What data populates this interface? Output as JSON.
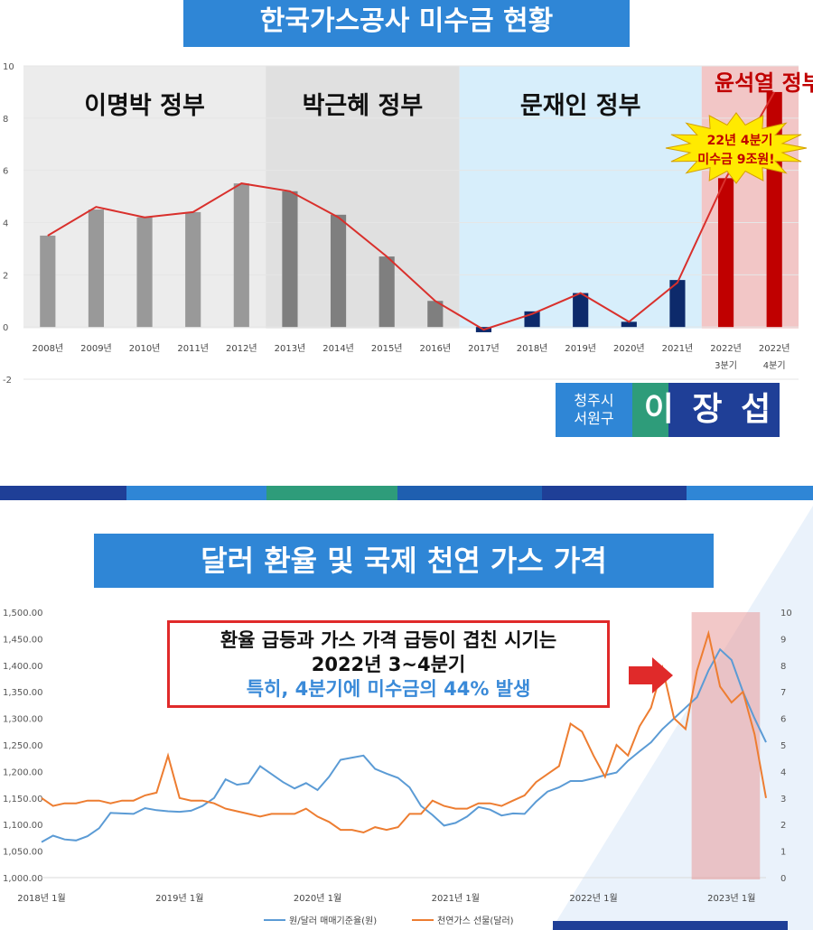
{
  "chart_data": [
    {
      "type": "bar",
      "title": "한국가스공사 미수금 현황",
      "categories": [
        {
          "l1": "2008년",
          "l2": ""
        },
        {
          "l1": "2009년",
          "l2": ""
        },
        {
          "l1": "2010년",
          "l2": ""
        },
        {
          "l1": "2011년",
          "l2": ""
        },
        {
          "l1": "2012년",
          "l2": ""
        },
        {
          "l1": "2013년",
          "l2": ""
        },
        {
          "l1": "2014년",
          "l2": ""
        },
        {
          "l1": "2015년",
          "l2": ""
        },
        {
          "l1": "2016년",
          "l2": ""
        },
        {
          "l1": "2017년",
          "l2": ""
        },
        {
          "l1": "2018년",
          "l2": ""
        },
        {
          "l1": "2019년",
          "l2": ""
        },
        {
          "l1": "2020년",
          "l2": ""
        },
        {
          "l1": "2021년",
          "l2": ""
        },
        {
          "l1": "2022년",
          "l2": "3분기"
        },
        {
          "l1": "2022년",
          "l2": "4분기"
        }
      ],
      "values": [
        3.5,
        4.5,
        4.2,
        4.4,
        5.5,
        5.2,
        4.3,
        2.7,
        1.0,
        -0.2,
        0.6,
        1.3,
        0.2,
        1.8,
        5.7,
        9.0
      ],
      "line_values": [
        3.5,
        4.6,
        4.2,
        4.4,
        5.5,
        5.2,
        4.2,
        2.7,
        1.0,
        -0.1,
        0.5,
        1.3,
        0.2,
        1.7,
        5.7,
        9.0
      ],
      "ylim": [
        -2,
        10
      ],
      "yticks": [
        "-2",
        "0",
        "2",
        "4",
        "6",
        "8",
        "10"
      ],
      "eras": [
        {
          "label": "이명박 정부",
          "from": 0,
          "to": 5,
          "color": "#ececec"
        },
        {
          "label": "박근혜 정부",
          "from": 5,
          "to": 9,
          "color": "#e0e0e0"
        },
        {
          "label": "문재인 정부",
          "from": 9,
          "to": 14,
          "color": "#d7eefb"
        },
        {
          "label": "윤석열 정부",
          "from": 14,
          "to": 16,
          "color": "#f2c6c6"
        }
      ],
      "bar_colors": {
        "lee": "#999999",
        "park": "#7f7f7f",
        "moon": "#0d2a6b",
        "yoon": "#c00000",
        "line": "#d9302c"
      },
      "callout": [
        "22년 4분기",
        "미수금 9조원!"
      ]
    },
    {
      "type": "line",
      "title": "달러 환율 및 국제 천연 가스 가격",
      "x_labels": [
        "2018년 1월",
        "2019년 1월",
        "2020년 1월",
        "2021년 1월",
        "2022년 1월",
        "2023년 1월"
      ],
      "yleft_ticks": [
        "1,000.00",
        "1,050.00",
        "1,100.00",
        "1,150.00",
        "1,200.00",
        "1,250.00",
        "1,300.00",
        "1,350.00",
        "1,400.00",
        "1,450.00",
        "1,500.00"
      ],
      "yleft_lim": [
        1000,
        1500
      ],
      "yright_ticks": [
        "0",
        "1",
        "2",
        "3",
        "4",
        "5",
        "6",
        "7",
        "8",
        "9",
        "10"
      ],
      "yright_lim": [
        0,
        10
      ],
      "series": [
        {
          "name": "원/달러 매매기준율(원)",
          "color": "#5b9bd5",
          "values": [
            1067,
            1079,
            1072,
            1070,
            1078,
            1093,
            1122,
            1121,
            1120,
            1131,
            1127,
            1125,
            1124,
            1126,
            1135,
            1150,
            1185,
            1175,
            1178,
            1210,
            1195,
            1180,
            1168,
            1178,
            1165,
            1190,
            1222,
            1226,
            1230,
            1205,
            1196,
            1188,
            1170,
            1135,
            1118,
            1098,
            1103,
            1115,
            1133,
            1128,
            1117,
            1121,
            1120,
            1143,
            1162,
            1170,
            1182,
            1182,
            1187,
            1193,
            1198,
            1220,
            1238,
            1255,
            1280,
            1300,
            1320,
            1340,
            1390,
            1430,
            1410,
            1350,
            1300,
            1255
          ]
        },
        {
          "name": "천연가스 선물(달러)",
          "color": "#ed7d31",
          "values": [
            3.0,
            2.7,
            2.8,
            2.8,
            2.9,
            2.9,
            2.8,
            2.9,
            2.9,
            3.1,
            3.2,
            4.6,
            3.0,
            2.9,
            2.9,
            2.8,
            2.6,
            2.5,
            2.4,
            2.3,
            2.4,
            2.4,
            2.4,
            2.6,
            2.3,
            2.1,
            1.8,
            1.8,
            1.7,
            1.9,
            1.8,
            1.9,
            2.4,
            2.4,
            2.9,
            2.7,
            2.6,
            2.6,
            2.8,
            2.8,
            2.7,
            2.9,
            3.1,
            3.6,
            3.9,
            4.2,
            5.8,
            5.5,
            4.6,
            3.8,
            5.0,
            4.6,
            5.7,
            6.4,
            7.9,
            6.0,
            5.6,
            7.8,
            9.2,
            7.2,
            6.6,
            7.0,
            5.4,
            3.0
          ]
        }
      ],
      "highlight": {
        "from": 57,
        "to": 62
      },
      "annotation": [
        "환율 급등과 가스 가격 급등이 겹친 시기는",
        "2022년 3~4분기",
        "특히, 4분기에 미수금의 44% 발생"
      ]
    }
  ],
  "badge": {
    "region_line1": "청주시",
    "region_line2": "서원구",
    "name": "이 장 섭"
  }
}
